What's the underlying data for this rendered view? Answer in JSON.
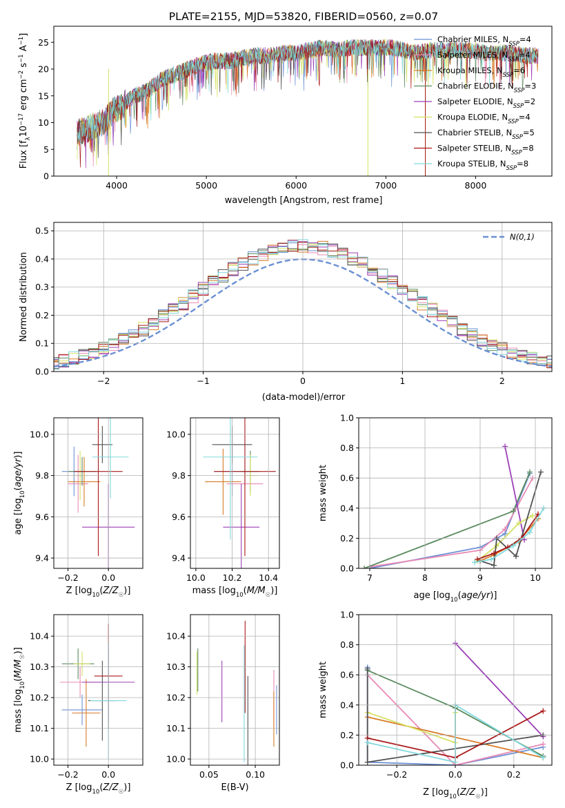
{
  "title": "PLATE=2155, MJD=53820, FIBERID=0560, z=0.07",
  "colors": [
    "#6a8fd4",
    "#e88ab5",
    "#d87a25",
    "#5a8a5e",
    "#9b3fb5",
    "#d4e060",
    "#505050",
    "#a81818",
    "#80d8dc"
  ],
  "chart_data": [
    {
      "name": "spectrum",
      "type": "line",
      "xlabel": "wavelength [Angstrom, rest frame]",
      "ylabel": "Flux [f_λ10^-17 erg cm^-2 s^-1 A^-1]",
      "xlim": [
        3300,
        8850
      ],
      "ylim": [
        0,
        28
      ],
      "xticks": [
        4000,
        5000,
        6000,
        7000,
        8000
      ],
      "yticks": [
        0,
        5,
        10,
        15,
        20,
        25
      ],
      "grid": false,
      "legend": "top-right",
      "continuum": {
        "x": [
          3550,
          3700,
          3850,
          3950,
          4050,
          4200,
          4350,
          4500,
          4650,
          4800,
          4950,
          5100,
          5250,
          5400,
          5550,
          5700,
          5850,
          6000,
          6150,
          6300,
          6450,
          6600,
          6750,
          6900,
          7050,
          7200,
          7350,
          7500,
          7650,
          7800,
          7950,
          8100,
          8250,
          8400,
          8550,
          8700
        ],
        "y": [
          8,
          9,
          10,
          12,
          13,
          15,
          16,
          18,
          19,
          20,
          21,
          21.5,
          21.5,
          22,
          22.5,
          22.5,
          23,
          23,
          23.5,
          24,
          23.5,
          24,
          24,
          24,
          24,
          23.5,
          23,
          23.5,
          23.5,
          23.5,
          23.5,
          23,
          23,
          23,
          22.5,
          22.5
        ]
      },
      "legend_entries": [
        {
          "label": "Chabrier MILES, N_SSP=4",
          "base": "Chabrier MILES, N",
          "sub": "SSP",
          "val": "=4",
          "color": "#6a8fd4"
        },
        {
          "label": "Salpeter MILES, N_SSP=4",
          "base": "Salpeter MILES, N",
          "sub": "SSP",
          "val": "=4",
          "color": "#e88ab5"
        },
        {
          "label": "Kroupa MILES, N_SSP=6",
          "base": "Kroupa MILES, N",
          "sub": "SSP",
          "val": "=6",
          "color": "#d87a25"
        },
        {
          "label": "Chabrier ELODIE, N_SSP=3",
          "base": "Chabrier ELODIE, N",
          "sub": "SSP",
          "val": "=3",
          "color": "#5a8a5e"
        },
        {
          "label": "Salpeter ELODIE, N_SSP=2",
          "base": "Salpeter ELODIE, N",
          "sub": "SSP",
          "val": "=2",
          "color": "#9b3fb5"
        },
        {
          "label": "Kroupa ELODIE, N_SSP=4",
          "base": "Kroupa ELODIE, N",
          "sub": "SSP",
          "val": "=4",
          "color": "#d4e060"
        },
        {
          "label": "Chabrier STELIB, N_SSP=5",
          "base": "Chabrier STELIB, N",
          "sub": "SSP",
          "val": "=5",
          "color": "#505050"
        },
        {
          "label": "Salpeter STELIB, N_SSP=8",
          "base": "Salpeter STELIB, N",
          "sub": "SSP",
          "val": "=8",
          "color": "#a81818"
        },
        {
          "label": "Kroupa STELIB, N_SSP=8",
          "base": "Kroupa STELIB, N",
          "sub": "SSP",
          "val": "=8",
          "color": "#80d8dc"
        }
      ]
    },
    {
      "name": "residuals",
      "type": "histogram",
      "xlabel": "(data-model)/error",
      "ylabel": "Normed distribution",
      "xlim": [
        -2.5,
        2.5
      ],
      "ylim": [
        0,
        0.53
      ],
      "xticks": [
        -2,
        -1,
        0,
        1,
        2
      ],
      "yticks": [
        0.0,
        0.1,
        0.2,
        0.3,
        0.4,
        0.5
      ],
      "grid": true,
      "legend": "top-right",
      "gaussian_label": "N(0,1)",
      "gaussian_color": "#6a8fd4",
      "bin_width": 0.1,
      "approx_peak": 0.45
    },
    {
      "name": "age-vs-Z",
      "type": "errorbar",
      "xlabel": "Z [log10(Z/Z☉)]",
      "ylabel": "age [log10(age/yr)]",
      "xlim": [
        -0.27,
        0.17
      ],
      "ylim": [
        9.35,
        10.08
      ],
      "xticks": [
        -0.2,
        0.0
      ],
      "yticks": [
        9.4,
        9.6,
        9.8,
        10.0
      ],
      "points": [
        {
          "x": -0.17,
          "y": 9.82,
          "xerr": 0.06,
          "yerr": 0.12,
          "color": "#6a8fd4"
        },
        {
          "x": -0.15,
          "y": 9.76,
          "xerr": 0.05,
          "yerr": 0.14,
          "color": "#e88ab5"
        },
        {
          "x": -0.12,
          "y": 9.77,
          "xerr": 0.08,
          "yerr": 0.12,
          "color": "#d87a25"
        },
        {
          "x": -0.13,
          "y": 9.82,
          "xerr": 0.07,
          "yerr": 0.07,
          "color": "#5a8a5e"
        },
        {
          "x": 0.0,
          "y": 9.55,
          "xerr": 0.13,
          "yerr": 0.21,
          "color": "#9b3fb5"
        },
        {
          "x": -0.14,
          "y": 9.8,
          "xerr": 0.04,
          "yerr": 0.12,
          "color": "#d4e060"
        },
        {
          "x": -0.03,
          "y": 9.95,
          "xerr": 0.05,
          "yerr": 0.09,
          "color": "#505050"
        },
        {
          "x": -0.05,
          "y": 9.82,
          "xerr": 0.12,
          "yerr": 0.41,
          "color": "#a81818"
        },
        {
          "x": 0.01,
          "y": 9.89,
          "xerr": 0.09,
          "yerr": 0.2,
          "color": "#80d8dc"
        }
      ]
    },
    {
      "name": "age-vs-mass",
      "type": "errorbar",
      "xlabel": "mass [log10(M/M☉)]",
      "ylabel": "",
      "xlim": [
        9.97,
        10.46
      ],
      "ylim": [
        9.35,
        10.08
      ],
      "xticks": [
        10.0,
        10.2,
        10.4
      ],
      "yticks": [
        9.4,
        9.6,
        9.8,
        10.0
      ],
      "points": [
        {
          "x": 10.2,
          "y": 9.82,
          "xerr": 0.1,
          "yerr": 0.12,
          "color": "#6a8fd4"
        },
        {
          "x": 10.27,
          "y": 9.76,
          "xerr": 0.1,
          "yerr": 0.14,
          "color": "#e88ab5"
        },
        {
          "x": 10.15,
          "y": 9.77,
          "xerr": 0.1,
          "yerr": 0.16,
          "color": "#d87a25"
        },
        {
          "x": 10.3,
          "y": 9.82,
          "xerr": 0.05,
          "yerr": 0.1,
          "color": "#5a8a5e"
        },
        {
          "x": 10.25,
          "y": 9.55,
          "xerr": 0.1,
          "yerr": 0.21,
          "color": "#9b3fb5"
        },
        {
          "x": 10.3,
          "y": 9.8,
          "xerr": 0.04,
          "yerr": 0.1,
          "color": "#d4e060"
        },
        {
          "x": 10.2,
          "y": 9.95,
          "xerr": 0.11,
          "yerr": 0.09,
          "color": "#505050"
        },
        {
          "x": 10.27,
          "y": 9.82,
          "xerr": 0.17,
          "yerr": 0.41,
          "color": "#a81818"
        },
        {
          "x": 10.19,
          "y": 9.89,
          "xerr": 0.15,
          "yerr": 0.4,
          "color": "#80d8dc"
        }
      ]
    },
    {
      "name": "mass-weight-vs-age",
      "type": "line",
      "xlabel": "age [log10(age/yr)]",
      "ylabel": "mass weight",
      "xlim": [
        6.8,
        10.3
      ],
      "ylim": [
        0,
        1
      ],
      "xticks": [
        7,
        8,
        9,
        10
      ],
      "yticks": [
        0.0,
        0.2,
        0.4,
        0.6,
        0.8,
        1.0
      ],
      "grid": true,
      "series": [
        {
          "color": "#6a8fd4",
          "x": [
            7.0,
            9.0,
            9.45,
            9.9
          ],
          "y": [
            0.0,
            0.14,
            0.23,
            0.63
          ]
        },
        {
          "color": "#e88ab5",
          "x": [
            7.0,
            9.0,
            9.45,
            9.95
          ],
          "y": [
            0.01,
            0.12,
            0.26,
            0.6
          ]
        },
        {
          "color": "#d87a25",
          "x": [
            9.0,
            9.25,
            9.7,
            10.05
          ],
          "y": [
            0.05,
            0.09,
            0.18,
            0.33
          ]
        },
        {
          "color": "#5a8a5e",
          "x": [
            6.9,
            9.6,
            9.9
          ],
          "y": [
            0.0,
            0.38,
            0.64
          ]
        },
        {
          "color": "#9b3fb5",
          "x": [
            9.45,
            9.8
          ],
          "y": [
            0.81,
            0.19
          ]
        },
        {
          "color": "#d4e060",
          "x": [
            8.95,
            9.3,
            9.7,
            9.95
          ],
          "y": [
            0.05,
            0.15,
            0.3,
            0.35
          ]
        },
        {
          "color": "#505050",
          "x": [
            9.0,
            9.25,
            9.3,
            9.65,
            10.1
          ],
          "y": [
            0.05,
            0.02,
            0.2,
            0.08,
            0.64
          ]
        },
        {
          "color": "#a81818",
          "x": [
            8.95,
            9.25,
            9.5,
            9.75,
            10.05
          ],
          "y": [
            0.06,
            0.1,
            0.14,
            0.2,
            0.36
          ]
        },
        {
          "color": "#80d8dc",
          "x": [
            8.9,
            9.2,
            9.6,
            9.9,
            10.15
          ],
          "y": [
            0.04,
            0.06,
            0.15,
            0.24,
            0.4
          ]
        }
      ]
    },
    {
      "name": "mass-vs-Z",
      "type": "errorbar",
      "xlabel": "Z [log10(Z/Z☉)]",
      "ylabel": "mass [log10(M/M☉)]",
      "xlim": [
        -0.27,
        0.17
      ],
      "ylim": [
        9.98,
        10.47
      ],
      "xticks": [
        -0.2,
        0.0
      ],
      "yticks": [
        10.0,
        10.1,
        10.2,
        10.3,
        10.4
      ],
      "points": [
        {
          "x": -0.13,
          "y": 10.16,
          "xerr": 0.1,
          "yerr": 0.05,
          "color": "#6a8fd4"
        },
        {
          "x": -0.14,
          "y": 10.25,
          "xerr": 0.1,
          "yerr": 0.05,
          "color": "#e88ab5"
        },
        {
          "x": -0.11,
          "y": 10.15,
          "xerr": 0.07,
          "yerr": 0.11,
          "color": "#d87a25"
        },
        {
          "x": -0.15,
          "y": 10.31,
          "xerr": 0.08,
          "yerr": 0.05,
          "color": "#5a8a5e"
        },
        {
          "x": 0.0,
          "y": 10.25,
          "xerr": 0.13,
          "yerr": 0.13,
          "color": "#9b3fb5"
        },
        {
          "x": -0.13,
          "y": 10.31,
          "xerr": 0.04,
          "yerr": 0.04,
          "color": "#d4e060"
        },
        {
          "x": -0.03,
          "y": 10.19,
          "xerr": 0.07,
          "yerr": 0.13,
          "color": "#505050"
        },
        {
          "x": 0.0,
          "y": 10.27,
          "xerr": 0.07,
          "yerr": 0.17,
          "color": "#a81818"
        },
        {
          "x": 0.0,
          "y": 10.19,
          "xerr": 0.09,
          "yerr": 0.19,
          "color": "#80d8dc"
        }
      ]
    },
    {
      "name": "mass-vs-EBV",
      "type": "errorbar",
      "xlabel": "E(B-V)",
      "ylabel": "",
      "xlim": [
        0.03,
        0.126
      ],
      "ylim": [
        9.98,
        10.47
      ],
      "xticks": [
        0.05,
        0.1
      ],
      "yticks": [
        10.0,
        10.1,
        10.2,
        10.3,
        10.4
      ],
      "points": [
        {
          "x": 0.123,
          "y": 10.16,
          "xerr": 0.0,
          "yerr": 0.08,
          "color": "#6a8fd4"
        },
        {
          "x": 0.12,
          "y": 10.2,
          "xerr": 0.0,
          "yerr": 0.09,
          "color": "#e88ab5"
        },
        {
          "x": 0.12,
          "y": 10.13,
          "xerr": 0.0,
          "yerr": 0.09,
          "color": "#d87a25"
        },
        {
          "x": 0.038,
          "y": 10.29,
          "xerr": 0.0,
          "yerr": 0.07,
          "color": "#5a8a5e"
        },
        {
          "x": 0.064,
          "y": 10.22,
          "xerr": 0.0,
          "yerr": 0.1,
          "color": "#9b3fb5"
        },
        {
          "x": 0.037,
          "y": 10.28,
          "xerr": 0.0,
          "yerr": 0.07,
          "color": "#d4e060"
        },
        {
          "x": 0.092,
          "y": 10.12,
          "xerr": 0.0,
          "yerr": 0.15,
          "color": "#505050"
        },
        {
          "x": 0.089,
          "y": 10.3,
          "xerr": 0.0,
          "yerr": 0.15,
          "color": "#a81818"
        },
        {
          "x": 0.088,
          "y": 10.18,
          "xerr": 0.0,
          "yerr": 0.19,
          "color": "#80d8dc"
        }
      ]
    },
    {
      "name": "mass-weight-vs-Z",
      "type": "line",
      "xlabel": "Z [log10(Z/Z☉)]",
      "ylabel": "mass weight",
      "xlim": [
        -0.33,
        0.33
      ],
      "ylim": [
        0,
        1
      ],
      "xticks": [
        -0.2,
        0.0,
        0.2
      ],
      "yticks": [
        0.0,
        0.2,
        0.4,
        0.6,
        0.8,
        1.0
      ],
      "grid": true,
      "series": [
        {
          "color": "#6a8fd4",
          "x": [
            -0.3,
            -0.3,
            0.0,
            0.3
          ],
          "y": [
            0.65,
            0.02,
            0.0,
            0.12
          ]
        },
        {
          "color": "#e88ab5",
          "x": [
            -0.3,
            0.0,
            0.3
          ],
          "y": [
            0.6,
            0.0,
            0.14
          ]
        },
        {
          "color": "#d87a25",
          "x": [
            -0.3,
            0.3
          ],
          "y": [
            0.32,
            0.05
          ]
        },
        {
          "color": "#5a8a5e",
          "x": [
            -0.3,
            0.0,
            0.3
          ],
          "y": [
            0.63,
            0.38,
            0.06
          ]
        },
        {
          "color": "#9b3fb5",
          "x": [
            0.0,
            0.3
          ],
          "y": [
            0.81,
            0.19
          ]
        },
        {
          "color": "#d4e060",
          "x": [
            -0.3,
            0.0,
            0.0
          ],
          "y": [
            0.35,
            0.15,
            0.35
          ]
        },
        {
          "color": "#505050",
          "x": [
            -0.3,
            -0.3,
            0.3
          ],
          "y": [
            0.64,
            0.02,
            0.2
          ]
        },
        {
          "color": "#a81818",
          "x": [
            -0.3,
            0.0,
            0.3
          ],
          "y": [
            0.18,
            0.05,
            0.36
          ]
        },
        {
          "color": "#80d8dc",
          "x": [
            -0.3,
            0.0,
            0.0,
            0.3
          ],
          "y": [
            0.15,
            0.02,
            0.4,
            0.05
          ]
        }
      ]
    }
  ]
}
